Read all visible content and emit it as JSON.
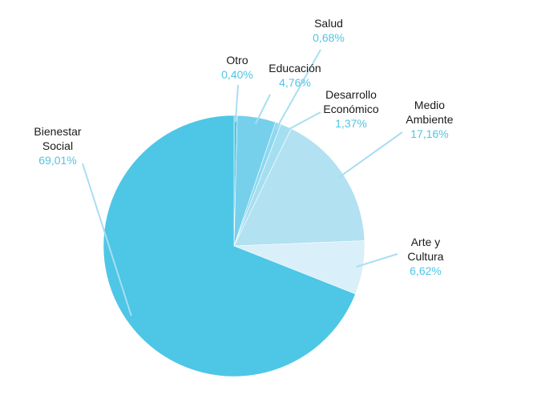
{
  "chart_data": {
    "type": "pie",
    "title": "",
    "slices": [
      {
        "label": [
          "Otro"
        ],
        "value_text": "0,40%",
        "value": 0.4,
        "color": "#4ec6e6"
      },
      {
        "label": [
          "Educación"
        ],
        "value_text": "4,76%",
        "value": 4.76,
        "color": "#76d0ec"
      },
      {
        "label": [
          "Salud"
        ],
        "value_text": "0,68%",
        "value": 0.68,
        "color": "#8ed8f0"
      },
      {
        "label": [
          "Desarrollo",
          "Económico"
        ],
        "value_text": "1,37%",
        "value": 1.37,
        "color": "#a4dff1"
      },
      {
        "label": [
          "Medio",
          "Ambiente"
        ],
        "value_text": "17,16%",
        "value": 17.16,
        "color": "#b2e1f1"
      },
      {
        "label": [
          "Arte y",
          "Cultura"
        ],
        "value_text": "6,62%",
        "value": 6.62,
        "color": "#d9eff9"
      },
      {
        "label": [
          "Bienestar",
          "Social"
        ],
        "value_text": "69,01%",
        "value": 69.01,
        "color": "#4ec6e6"
      }
    ],
    "colors": {
      "value_text": "#4ec6e6",
      "leader_line": "#a9def0",
      "label_text": "#1a1a1a"
    }
  }
}
